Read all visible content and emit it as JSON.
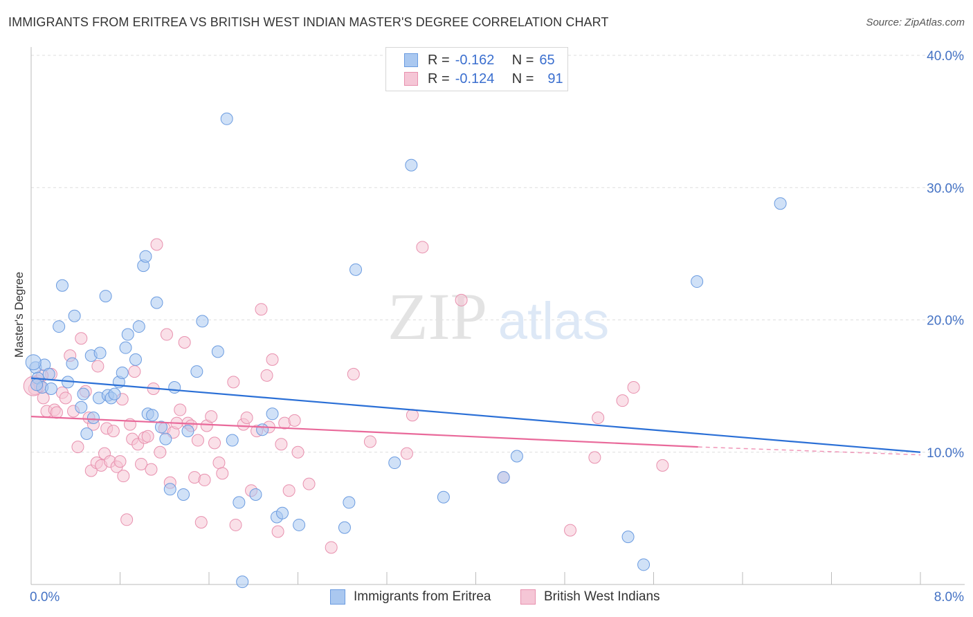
{
  "header": {
    "title": "IMMIGRANTS FROM ERITREA VS BRITISH WEST INDIAN MASTER'S DEGREE CORRELATION CHART",
    "source": "Source: ZipAtlas.com"
  },
  "watermark": {
    "part1": "ZIP",
    "part2": "atlas"
  },
  "legend": {
    "r_label": "R =",
    "n_label": "N =",
    "rows": [
      {
        "r": "-0.162",
        "n": "65",
        "color": "#aac8f0"
      },
      {
        "r": "-0.124",
        "n": "91",
        "color": "#f5b8cc"
      }
    ]
  },
  "bottom_legend": {
    "items": [
      {
        "label": "Immigrants from Eritrea",
        "color": "#aac8f0"
      },
      {
        "label": "British West Indians",
        "color": "#f5b8cc"
      }
    ]
  },
  "colors": {
    "blue_line": "#2a6fd6",
    "pink_line": "#e9699a",
    "blue_fill": "#aac8f0",
    "blue_stroke": "#6a9be0",
    "pink_fill": "#f5c6d6",
    "pink_stroke": "#e890ae",
    "tick_text": "#4472c4",
    "grid": "#dddddd"
  },
  "chart_data": {
    "type": "scatter",
    "title": "IMMIGRANTS FROM ERITREA VS BRITISH WEST INDIAN MASTER'S DEGREE CORRELATION CHART",
    "xlabel": "",
    "ylabel": "Master's Degree",
    "xlim": [
      0,
      8
    ],
    "ylim": [
      0,
      40
    ],
    "x_tick_labels": [
      "0.0%",
      "8.0%"
    ],
    "y_ticks": [
      10,
      20,
      30,
      40
    ],
    "y_tick_labels": [
      "10.0%",
      "20.0%",
      "30.0%",
      "40.0%"
    ],
    "grid": true,
    "series": [
      {
        "name": "Immigrants from Eritrea",
        "trend": {
          "x": [
            0,
            8
          ],
          "y": [
            15.6,
            10.0
          ]
        },
        "points": [
          [
            0.04,
            16.4
          ],
          [
            0.06,
            15.6
          ],
          [
            0.1,
            14.9
          ],
          [
            0.12,
            16.6
          ],
          [
            0.16,
            15.9
          ],
          [
            0.18,
            14.8
          ],
          [
            0.28,
            22.6
          ],
          [
            0.25,
            19.5
          ],
          [
            0.33,
            15.3
          ],
          [
            0.37,
            16.7
          ],
          [
            0.39,
            20.3
          ],
          [
            0.45,
            13.4
          ],
          [
            0.47,
            14.4
          ],
          [
            0.5,
            11.4
          ],
          [
            0.56,
            12.6
          ],
          [
            0.54,
            17.3
          ],
          [
            0.62,
            17.5
          ],
          [
            0.61,
            14.1
          ],
          [
            0.67,
            21.8
          ],
          [
            0.69,
            14.3
          ],
          [
            0.72,
            14.1
          ],
          [
            0.75,
            14.4
          ],
          [
            0.79,
            15.3
          ],
          [
            0.82,
            16.0
          ],
          [
            0.85,
            17.9
          ],
          [
            0.87,
            18.9
          ],
          [
            0.94,
            17.0
          ],
          [
            0.97,
            19.5
          ],
          [
            1.01,
            24.1
          ],
          [
            1.03,
            24.8
          ],
          [
            1.05,
            12.9
          ],
          [
            1.09,
            12.8
          ],
          [
            1.13,
            21.3
          ],
          [
            1.17,
            11.9
          ],
          [
            1.21,
            11.0
          ],
          [
            1.25,
            7.2
          ],
          [
            1.29,
            14.9
          ],
          [
            1.37,
            6.8
          ],
          [
            1.41,
            11.6
          ],
          [
            1.49,
            16.1
          ],
          [
            1.54,
            19.9
          ],
          [
            1.68,
            17.6
          ],
          [
            1.76,
            35.2
          ],
          [
            1.81,
            10.9
          ],
          [
            1.87,
            6.2
          ],
          [
            1.9,
            0.2
          ],
          [
            2.02,
            6.8
          ],
          [
            2.08,
            11.7
          ],
          [
            2.17,
            12.9
          ],
          [
            2.21,
            5.1
          ],
          [
            2.26,
            5.4
          ],
          [
            2.41,
            4.5
          ],
          [
            2.82,
            4.3
          ],
          [
            2.86,
            6.2
          ],
          [
            2.92,
            23.8
          ],
          [
            3.27,
            9.2
          ],
          [
            3.42,
            31.7
          ],
          [
            3.71,
            6.6
          ],
          [
            4.25,
            8.1
          ],
          [
            4.37,
            9.7
          ],
          [
            5.37,
            3.6
          ],
          [
            5.51,
            1.5
          ],
          [
            5.99,
            22.9
          ],
          [
            6.74,
            28.8
          ],
          [
            0.05,
            15.1
          ]
        ]
      },
      {
        "name": "British West Indians",
        "trend": {
          "x": [
            0,
            6
          ],
          "y": [
            12.7,
            10.4
          ]
        },
        "trend_dashed": {
          "x": [
            6,
            8
          ],
          "y": [
            10.4,
            9.8
          ]
        },
        "points": [
          [
            0.03,
            14.8
          ],
          [
            0.06,
            15.4
          ],
          [
            0.08,
            15.0
          ],
          [
            0.11,
            14.1
          ],
          [
            0.14,
            13.1
          ],
          [
            0.18,
            15.9
          ],
          [
            0.21,
            13.2
          ],
          [
            0.23,
            13.0
          ],
          [
            0.28,
            14.5
          ],
          [
            0.31,
            14.1
          ],
          [
            0.35,
            17.3
          ],
          [
            0.38,
            13.1
          ],
          [
            0.42,
            10.4
          ],
          [
            0.45,
            18.6
          ],
          [
            0.49,
            14.6
          ],
          [
            0.52,
            12.6
          ],
          [
            0.54,
            8.6
          ],
          [
            0.56,
            12.1
          ],
          [
            0.59,
            9.2
          ],
          [
            0.6,
            16.5
          ],
          [
            0.63,
            9.0
          ],
          [
            0.66,
            9.9
          ],
          [
            0.68,
            11.8
          ],
          [
            0.71,
            9.3
          ],
          [
            0.74,
            11.6
          ],
          [
            0.77,
            8.9
          ],
          [
            0.8,
            9.3
          ],
          [
            0.82,
            14.0
          ],
          [
            0.83,
            8.2
          ],
          [
            0.86,
            4.9
          ],
          [
            0.89,
            12.1
          ],
          [
            0.91,
            11.0
          ],
          [
            0.93,
            16.1
          ],
          [
            0.96,
            10.6
          ],
          [
            0.99,
            9.1
          ],
          [
            1.02,
            11.1
          ],
          [
            1.05,
            11.2
          ],
          [
            1.08,
            8.7
          ],
          [
            1.1,
            14.8
          ],
          [
            1.13,
            25.7
          ],
          [
            1.16,
            10.0
          ],
          [
            1.2,
            11.8
          ],
          [
            1.22,
            18.9
          ],
          [
            1.25,
            7.7
          ],
          [
            1.28,
            11.5
          ],
          [
            1.31,
            12.2
          ],
          [
            1.34,
            13.2
          ],
          [
            1.38,
            18.3
          ],
          [
            1.41,
            12.2
          ],
          [
            1.44,
            12.0
          ],
          [
            1.47,
            8.1
          ],
          [
            1.5,
            10.9
          ],
          [
            1.53,
            4.7
          ],
          [
            1.56,
            7.9
          ],
          [
            1.58,
            12.0
          ],
          [
            1.62,
            12.7
          ],
          [
            1.65,
            10.7
          ],
          [
            1.69,
            9.2
          ],
          [
            1.72,
            8.4
          ],
          [
            1.82,
            15.3
          ],
          [
            1.84,
            4.5
          ],
          [
            1.91,
            12.1
          ],
          [
            1.94,
            12.6
          ],
          [
            1.98,
            7.1
          ],
          [
            2.03,
            11.6
          ],
          [
            2.07,
            20.8
          ],
          [
            2.12,
            15.8
          ],
          [
            2.14,
            11.9
          ],
          [
            2.17,
            17.0
          ],
          [
            2.22,
            4.0
          ],
          [
            2.25,
            10.6
          ],
          [
            2.28,
            12.2
          ],
          [
            2.32,
            7.1
          ],
          [
            2.37,
            12.4
          ],
          [
            2.4,
            10.0
          ],
          [
            2.5,
            7.6
          ],
          [
            2.7,
            2.8
          ],
          [
            2.9,
            15.9
          ],
          [
            3.05,
            10.8
          ],
          [
            3.38,
            9.9
          ],
          [
            3.43,
            12.8
          ],
          [
            3.52,
            25.5
          ],
          [
            3.87,
            21.5
          ],
          [
            4.25,
            8.1
          ],
          [
            4.85,
            4.1
          ],
          [
            5.07,
            9.6
          ],
          [
            5.1,
            12.6
          ],
          [
            5.32,
            13.9
          ],
          [
            5.42,
            14.9
          ],
          [
            5.68,
            9.0
          ],
          [
            0.1,
            15.8
          ]
        ]
      }
    ]
  }
}
